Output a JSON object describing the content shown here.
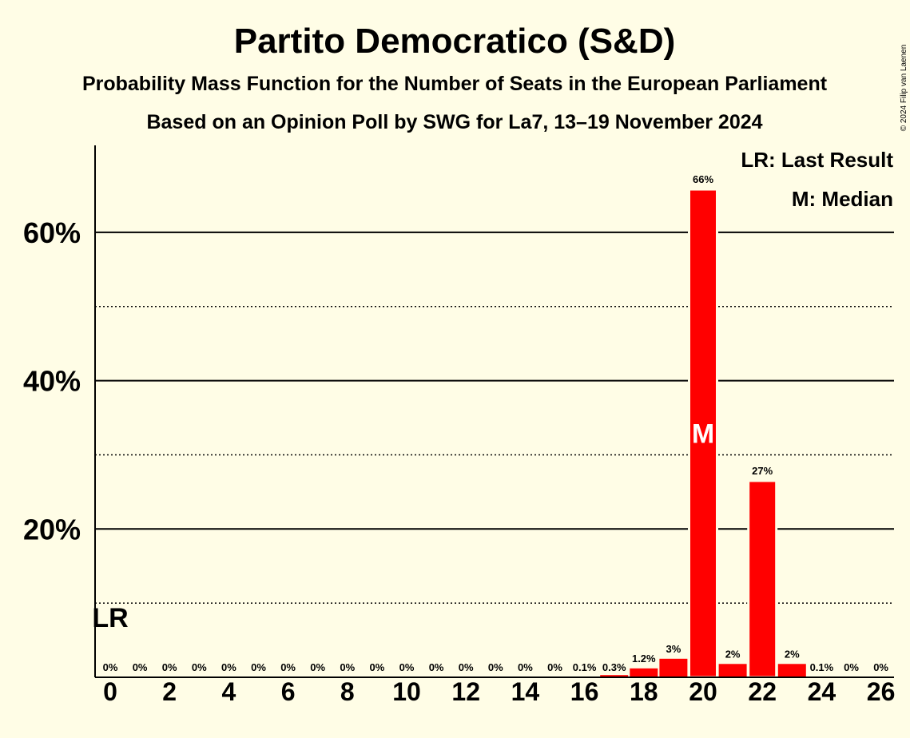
{
  "chart_data": {
    "type": "bar",
    "title": "Partito Democratico (S&D)",
    "subtitle1": "Probability Mass Function for the Number of Seats in the European Parliament",
    "subtitle2": "Based on an Opinion Poll by SWG for La7, 13–19 November 2024",
    "copyright": "© 2024 Filip van Laenen",
    "legend": {
      "last_result": "LR: Last Result",
      "median": "M: Median"
    },
    "x": [
      0,
      1,
      2,
      3,
      4,
      5,
      6,
      7,
      8,
      9,
      10,
      11,
      12,
      13,
      14,
      15,
      16,
      17,
      18,
      19,
      20,
      21,
      22,
      23,
      24,
      25,
      26
    ],
    "values": [
      0,
      0,
      0,
      0,
      0,
      0,
      0,
      0,
      0,
      0,
      0,
      0,
      0,
      0,
      0,
      0,
      0.1,
      0.3,
      1.2,
      2.5,
      65.8,
      1.8,
      26.5,
      1.8,
      0.1,
      0,
      0
    ],
    "labels": [
      "0%",
      "0%",
      "0%",
      "0%",
      "0%",
      "0%",
      "0%",
      "0%",
      "0%",
      "0%",
      "0%",
      "0%",
      "0%",
      "0%",
      "0%",
      "0%",
      "0.1%",
      "0.3%",
      "1.2%",
      "3%",
      "66%",
      "2%",
      "27%",
      "2%",
      "0.1%",
      "0%",
      "0%"
    ],
    "x_tick_labels": [
      "0",
      "2",
      "4",
      "6",
      "8",
      "10",
      "12",
      "14",
      "16",
      "18",
      "20",
      "22",
      "24",
      "26"
    ],
    "y_ticks_major": [
      20,
      40,
      60
    ],
    "y_ticks_minor": [
      10,
      30,
      50
    ],
    "y_tick_labels": [
      "20%",
      "40%",
      "60%"
    ],
    "ylim": [
      0,
      72
    ],
    "median_seat": 20,
    "median_marker": "M",
    "last_result_seat": 0,
    "last_result_marker": "LR",
    "bar_color": "#ff0000"
  }
}
